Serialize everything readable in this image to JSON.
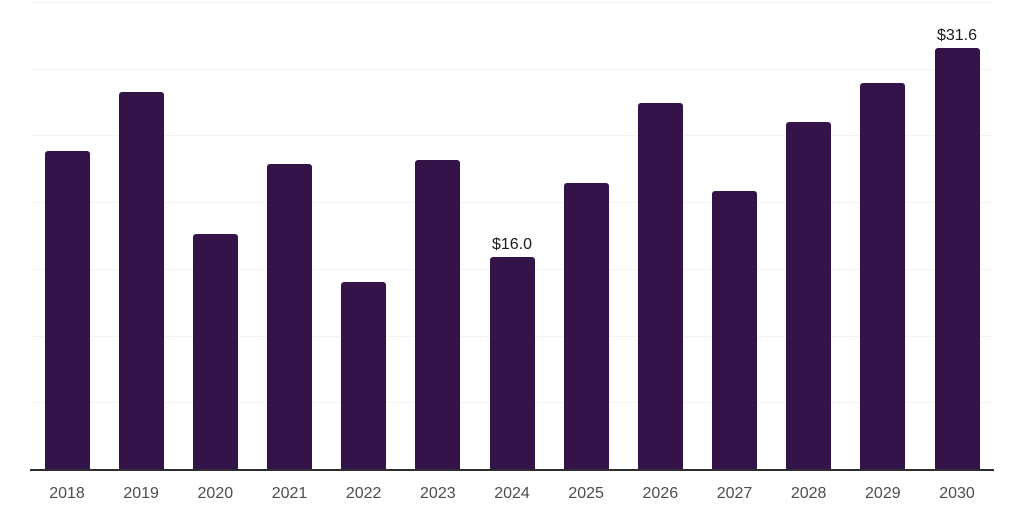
{
  "chart_data": {
    "type": "bar",
    "categories": [
      "2018",
      "2019",
      "2020",
      "2021",
      "2022",
      "2023",
      "2024",
      "2025",
      "2026",
      "2027",
      "2028",
      "2029",
      "2030"
    ],
    "values": [
      23.9,
      28.3,
      17.7,
      22.9,
      14.1,
      23.2,
      16.0,
      21.5,
      27.5,
      20.9,
      26.1,
      29.0,
      31.6
    ],
    "bar_labels": [
      "",
      "",
      "",
      "",
      "",
      "",
      "$16.0",
      "",
      "",
      "",
      "",
      "",
      "$31.6"
    ],
    "title": "",
    "xlabel": "",
    "ylabel": "",
    "ylim": [
      0,
      35
    ],
    "gridline_values": [
      5,
      10,
      15,
      20,
      25,
      30,
      35
    ],
    "grid": true,
    "legend": "none",
    "y_axis_labels_visible": false,
    "currency_prefix": "$"
  },
  "colors": {
    "bar": "#341349",
    "axis": "#2e2e2e",
    "gridline": "#f2f2f2",
    "tick_label": "#4d4d4d",
    "data_label": "#1a1a1a",
    "background": "#ffffff"
  }
}
